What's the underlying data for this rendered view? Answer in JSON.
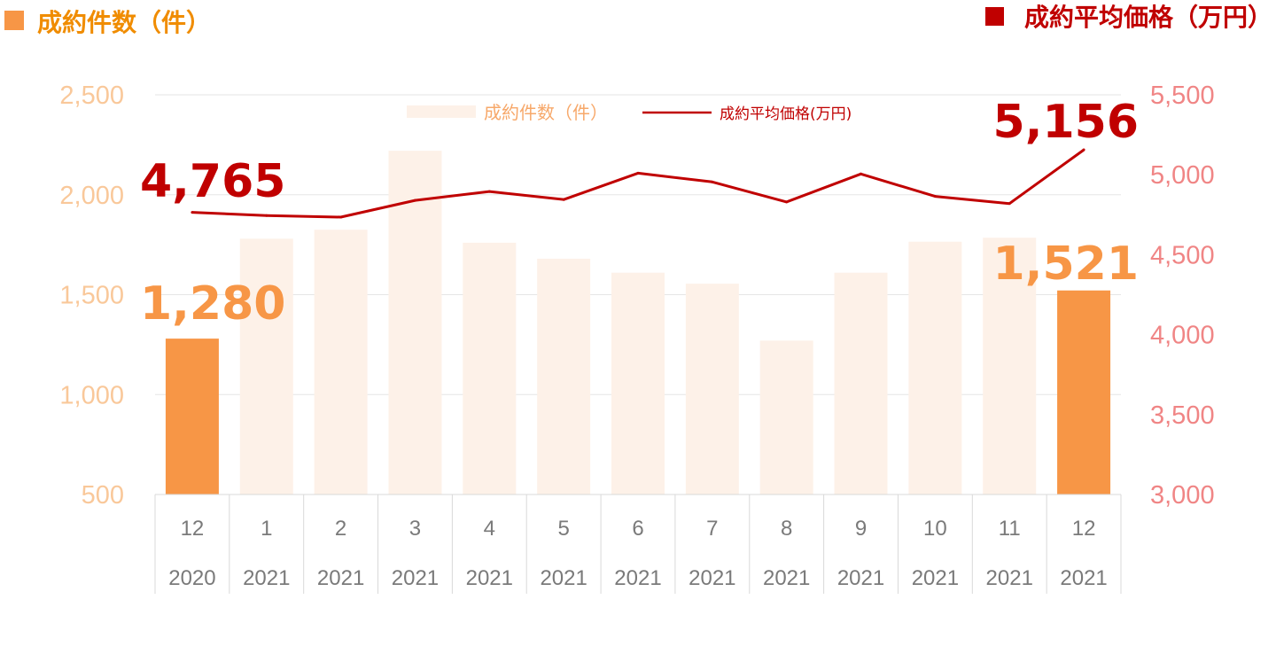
{
  "colors": {
    "bar_highlight": "#f79646",
    "bar_faded": "#fdf1e8",
    "line": "#c00000",
    "left_title": "#f08c00",
    "right_title": "#c00000",
    "left_tick": "#f9c89a",
    "right_tick": "#f08585",
    "highlight_label_bar": "#f79646",
    "highlight_label_line": "#c00000",
    "grid": "#e6e6e6",
    "category_text": "#7a7a7a"
  },
  "chart_data": {
    "type": "bar",
    "title_left": "成約件数（件）",
    "title_right": "成約平均価格（万円）",
    "categories": [
      {
        "month": "12",
        "year": "2020"
      },
      {
        "month": "1",
        "year": "2021"
      },
      {
        "month": "2",
        "year": "2021"
      },
      {
        "month": "3",
        "year": "2021"
      },
      {
        "month": "4",
        "year": "2021"
      },
      {
        "month": "5",
        "year": "2021"
      },
      {
        "month": "6",
        "year": "2021"
      },
      {
        "month": "7",
        "year": "2021"
      },
      {
        "month": "8",
        "year": "2021"
      },
      {
        "month": "9",
        "year": "2021"
      },
      {
        "month": "10",
        "year": "2021"
      },
      {
        "month": "11",
        "year": "2021"
      },
      {
        "month": "12",
        "year": "2021"
      }
    ],
    "series": [
      {
        "name": "成約件数（件）",
        "type": "bar",
        "axis": "left",
        "values": [
          1280,
          1780,
          1825,
          2220,
          1760,
          1680,
          1610,
          1555,
          1270,
          1610,
          1765,
          1785,
          1521
        ],
        "highlight_indices": [
          0,
          12
        ]
      },
      {
        "name": "成約平均価格(万円)",
        "type": "line",
        "axis": "right",
        "values": [
          4765,
          4745,
          4735,
          4840,
          4895,
          4845,
          5010,
          4955,
          4830,
          5005,
          4865,
          4820,
          5156
        ]
      }
    ],
    "y_left": {
      "min": 500,
      "max": 2500,
      "ticks": [
        "2,500",
        "2,000",
        "1,500",
        "1,000",
        "500"
      ],
      "tick_values": [
        2500,
        2000,
        1500,
        1000,
        500
      ]
    },
    "y_right": {
      "min": 3000,
      "max": 5500,
      "ticks": [
        "5,500",
        "5,000",
        "4,500",
        "4,000",
        "3,500",
        "3,000"
      ],
      "tick_values": [
        5500,
        5000,
        4500,
        4000,
        3500,
        3000
      ]
    },
    "grid": true,
    "legend_position": "top-center",
    "annotations": [
      {
        "text": "4,765",
        "series": 1,
        "index": 0
      },
      {
        "text": "5,156",
        "series": 1,
        "index": 12
      },
      {
        "text": "1,280",
        "series": 0,
        "index": 0
      },
      {
        "text": "1,521",
        "series": 0,
        "index": 12
      }
    ]
  }
}
